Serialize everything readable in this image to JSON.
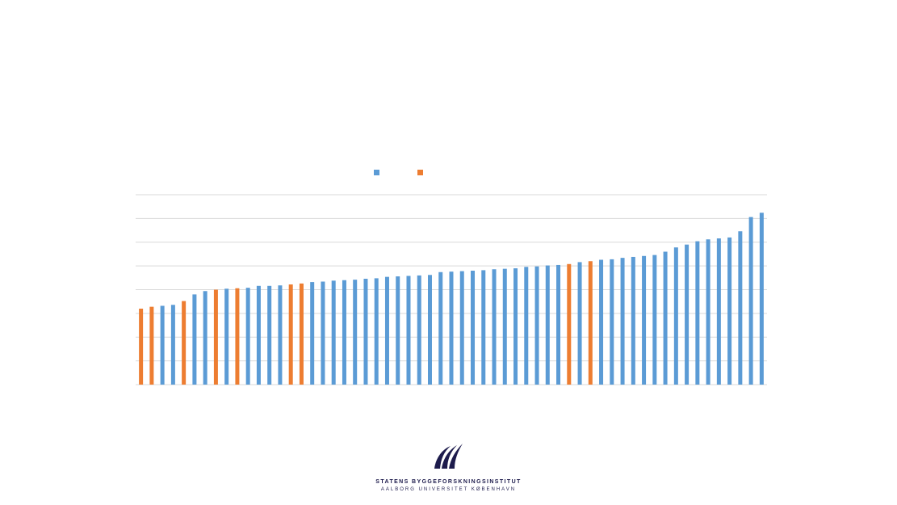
{
  "chart_data": {
    "type": "bar",
    "grid": true,
    "legend_position": "top-center",
    "ylim": [
      0,
      8
    ],
    "colors": {
      "blue": "#5b9bd5",
      "orange": "#ed7d31"
    },
    "legend": [
      {
        "color_key": "blue",
        "label": ""
      },
      {
        "color_key": "orange",
        "label": ""
      }
    ],
    "bars": [
      {
        "value": 3.2,
        "color_key": "orange"
      },
      {
        "value": 3.28,
        "color_key": "orange"
      },
      {
        "value": 3.32,
        "color_key": "blue"
      },
      {
        "value": 3.36,
        "color_key": "blue"
      },
      {
        "value": 3.52,
        "color_key": "orange"
      },
      {
        "value": 3.8,
        "color_key": "blue"
      },
      {
        "value": 3.94,
        "color_key": "blue"
      },
      {
        "value": 4.0,
        "color_key": "orange"
      },
      {
        "value": 4.04,
        "color_key": "blue"
      },
      {
        "value": 4.06,
        "color_key": "orange"
      },
      {
        "value": 4.08,
        "color_key": "blue"
      },
      {
        "value": 4.16,
        "color_key": "blue"
      },
      {
        "value": 4.16,
        "color_key": "blue"
      },
      {
        "value": 4.18,
        "color_key": "blue"
      },
      {
        "value": 4.22,
        "color_key": "orange"
      },
      {
        "value": 4.26,
        "color_key": "orange"
      },
      {
        "value": 4.32,
        "color_key": "blue"
      },
      {
        "value": 4.34,
        "color_key": "blue"
      },
      {
        "value": 4.38,
        "color_key": "blue"
      },
      {
        "value": 4.4,
        "color_key": "blue"
      },
      {
        "value": 4.42,
        "color_key": "blue"
      },
      {
        "value": 4.46,
        "color_key": "blue"
      },
      {
        "value": 4.48,
        "color_key": "blue"
      },
      {
        "value": 4.54,
        "color_key": "blue"
      },
      {
        "value": 4.56,
        "color_key": "blue"
      },
      {
        "value": 4.58,
        "color_key": "blue"
      },
      {
        "value": 4.6,
        "color_key": "blue"
      },
      {
        "value": 4.62,
        "color_key": "blue"
      },
      {
        "value": 4.74,
        "color_key": "blue"
      },
      {
        "value": 4.76,
        "color_key": "blue"
      },
      {
        "value": 4.78,
        "color_key": "blue"
      },
      {
        "value": 4.8,
        "color_key": "blue"
      },
      {
        "value": 4.82,
        "color_key": "blue"
      },
      {
        "value": 4.86,
        "color_key": "blue"
      },
      {
        "value": 4.88,
        "color_key": "blue"
      },
      {
        "value": 4.9,
        "color_key": "blue"
      },
      {
        "value": 4.96,
        "color_key": "blue"
      },
      {
        "value": 4.98,
        "color_key": "blue"
      },
      {
        "value": 5.02,
        "color_key": "blue"
      },
      {
        "value": 5.04,
        "color_key": "blue"
      },
      {
        "value": 5.08,
        "color_key": "orange"
      },
      {
        "value": 5.16,
        "color_key": "blue"
      },
      {
        "value": 5.2,
        "color_key": "orange"
      },
      {
        "value": 5.26,
        "color_key": "blue"
      },
      {
        "value": 5.28,
        "color_key": "blue"
      },
      {
        "value": 5.34,
        "color_key": "blue"
      },
      {
        "value": 5.38,
        "color_key": "blue"
      },
      {
        "value": 5.42,
        "color_key": "blue"
      },
      {
        "value": 5.46,
        "color_key": "blue"
      },
      {
        "value": 5.6,
        "color_key": "blue"
      },
      {
        "value": 5.78,
        "color_key": "blue"
      },
      {
        "value": 5.9,
        "color_key": "blue"
      },
      {
        "value": 6.04,
        "color_key": "blue"
      },
      {
        "value": 6.12,
        "color_key": "blue"
      },
      {
        "value": 6.16,
        "color_key": "blue"
      },
      {
        "value": 6.2,
        "color_key": "blue"
      },
      {
        "value": 6.46,
        "color_key": "blue"
      },
      {
        "value": 7.06,
        "color_key": "blue"
      },
      {
        "value": 7.24,
        "color_key": "blue"
      }
    ]
  },
  "footer": {
    "org_name": "STATENS BYGGEFORSKNINGSINSTITUT",
    "org_sub": "AALBORG UNIVERSITET KØBENHAVN"
  }
}
